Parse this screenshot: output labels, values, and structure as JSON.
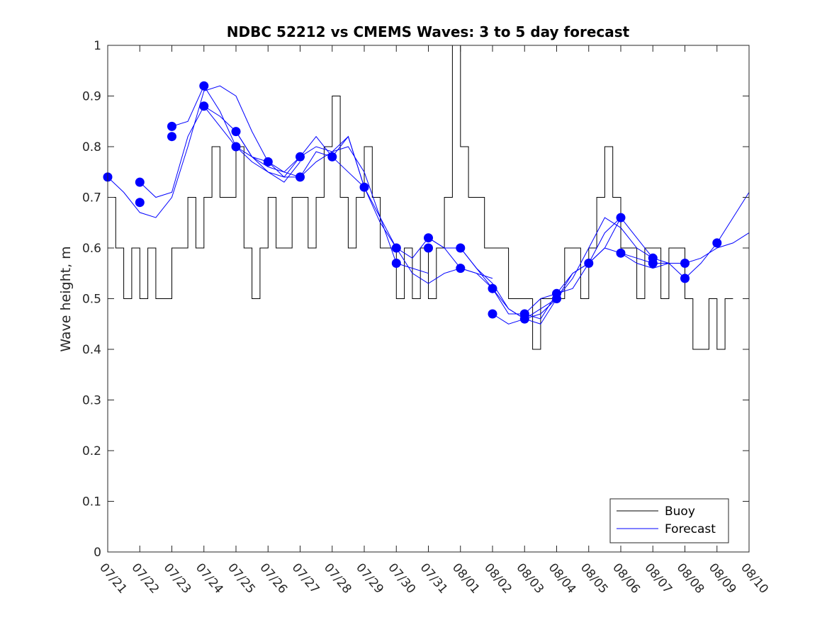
{
  "chart_data": {
    "type": "line",
    "title": "NDBC 52212 vs CMEMS Waves: 3 to 5 day forecast",
    "xlabel": "",
    "ylabel": "Wave height, m",
    "ylim": [
      0,
      1
    ],
    "yticks": [
      0,
      0.1,
      0.2,
      0.3,
      0.4,
      0.5,
      0.6,
      0.7,
      0.8,
      0.9,
      1
    ],
    "ytick_labels": [
      "0",
      "0.1",
      "0.2",
      "0.3",
      "0.4",
      "0.5",
      "0.6",
      "0.7",
      "0.8",
      "0.9",
      "1"
    ],
    "xlim": [
      "07/21",
      "08/10"
    ],
    "x_tick_labels": [
      "07/21",
      "07/22",
      "07/23",
      "07/24",
      "07/25",
      "07/26",
      "07/27",
      "07/28",
      "07/29",
      "07/30",
      "07/31",
      "08/01",
      "08/02",
      "08/03",
      "08/04",
      "08/05",
      "08/06",
      "08/07",
      "08/08",
      "08/09",
      "08/10"
    ],
    "grid": false,
    "legend_position": "bottom-right",
    "colors": {
      "buoy": "#000000",
      "forecast": "#0000ff",
      "marker": "#0000ff"
    },
    "legend": [
      {
        "name": "Buoy",
        "color": "#000000"
      },
      {
        "name": "Forecast",
        "color": "#0000ff"
      }
    ],
    "buoy": {
      "name": "Buoy",
      "x": [
        "07/21 00:00",
        "07/21 06:00",
        "07/21 12:00",
        "07/21 18:00",
        "07/22 00:00",
        "07/22 06:00",
        "07/22 12:00",
        "07/22 18:00",
        "07/23 00:00",
        "07/23 06:00",
        "07/23 12:00",
        "07/23 18:00",
        "07/24 00:00",
        "07/24 06:00",
        "07/24 12:00",
        "07/24 18:00",
        "07/25 00:00",
        "07/25 06:00",
        "07/25 12:00",
        "07/25 18:00",
        "07/26 00:00",
        "07/26 06:00",
        "07/26 12:00",
        "07/26 18:00",
        "07/27 00:00",
        "07/27 06:00",
        "07/27 12:00",
        "07/27 18:00",
        "07/28 00:00",
        "07/28 06:00",
        "07/28 12:00",
        "07/28 18:00",
        "07/29 00:00",
        "07/29 06:00",
        "07/29 12:00",
        "07/29 18:00",
        "07/30 00:00",
        "07/30 06:00",
        "07/30 12:00",
        "07/30 18:00",
        "07/31 00:00",
        "07/31 06:00",
        "07/31 12:00",
        "07/31 18:00",
        "08/01 00:00",
        "08/01 06:00",
        "08/01 12:00",
        "08/01 18:00",
        "08/02 00:00",
        "08/02 06:00",
        "08/02 12:00",
        "08/02 18:00",
        "08/03 00:00",
        "08/03 06:00",
        "08/03 12:00",
        "08/03 18:00",
        "08/04 00:00",
        "08/04 06:00",
        "08/04 12:00",
        "08/04 18:00",
        "08/05 00:00",
        "08/05 06:00",
        "08/05 12:00",
        "08/05 18:00",
        "08/06 00:00",
        "08/06 06:00",
        "08/06 12:00",
        "08/06 18:00",
        "08/07 00:00",
        "08/07 06:00",
        "08/07 12:00",
        "08/07 18:00",
        "08/08 00:00",
        "08/08 06:00",
        "08/08 12:00",
        "08/08 18:00",
        "08/09 00:00",
        "08/09 06:00",
        "08/09 12:00"
      ],
      "y": [
        0.7,
        0.6,
        0.5,
        0.6,
        0.5,
        0.6,
        0.5,
        0.5,
        0.6,
        0.6,
        0.7,
        0.6,
        0.7,
        0.8,
        0.7,
        0.7,
        0.8,
        0.6,
        0.5,
        0.6,
        0.7,
        0.6,
        0.6,
        0.7,
        0.7,
        0.6,
        0.7,
        0.8,
        0.9,
        0.7,
        0.6,
        0.7,
        0.8,
        0.7,
        0.6,
        0.6,
        0.5,
        0.6,
        0.5,
        0.6,
        0.5,
        0.6,
        0.7,
        1.0,
        0.8,
        0.7,
        0.7,
        0.6,
        0.6,
        0.6,
        0.5,
        0.5,
        0.5,
        0.4,
        0.5,
        0.5,
        0.5,
        0.6,
        0.6,
        0.5,
        0.6,
        0.7,
        0.8,
        0.7,
        0.6,
        0.6,
        0.5,
        0.6,
        0.6,
        0.5,
        0.6,
        0.6,
        0.5,
        0.4,
        0.4,
        0.5,
        0.4,
        0.5,
        0.5
      ]
    },
    "forecast_series": [
      {
        "x": [
          "07/21 00:00",
          "07/21 12:00",
          "07/22 00:00",
          "07/22 12:00",
          "07/23 00:00",
          "07/23 12:00",
          "07/24 00:00",
          "07/24 12:00",
          "07/25 00:00",
          "07/25 12:00",
          "07/26 00:00"
        ],
        "y": [
          0.74,
          0.71,
          0.67,
          0.66,
          0.7,
          0.8,
          0.91,
          0.92,
          0.9,
          0.83,
          0.77
        ]
      },
      {
        "x": [
          "07/22 00:00",
          "07/22 12:00",
          "07/23 00:00",
          "07/23 12:00",
          "07/24 00:00",
          "07/24 12:00",
          "07/25 00:00",
          "07/25 12:00",
          "07/26 00:00",
          "07/26 12:00",
          "07/27 00:00"
        ],
        "y": [
          0.73,
          0.7,
          0.71,
          0.82,
          0.88,
          0.86,
          0.83,
          0.78,
          0.75,
          0.73,
          0.77
        ]
      },
      {
        "x": [
          "07/23 00:00",
          "07/23 12:00",
          "07/24 00:00",
          "07/24 12:00",
          "07/25 00:00",
          "07/25 12:00",
          "07/26 00:00",
          "07/26 12:00",
          "07/27 00:00",
          "07/27 12:00",
          "07/28 00:00"
        ],
        "y": [
          0.84,
          0.85,
          0.92,
          0.87,
          0.8,
          0.77,
          0.75,
          0.74,
          0.78,
          0.82,
          0.78
        ]
      },
      {
        "x": [
          "07/24 00:00",
          "07/24 12:00",
          "07/25 00:00",
          "07/25 12:00",
          "07/26 00:00",
          "07/26 12:00",
          "07/27 00:00",
          "07/27 12:00",
          "07/28 00:00",
          "07/28 12:00",
          "07/29 00:00"
        ],
        "y": [
          0.88,
          0.84,
          0.8,
          0.78,
          0.76,
          0.75,
          0.78,
          0.8,
          0.79,
          0.82,
          0.72
        ]
      },
      {
        "x": [
          "07/25 00:00",
          "07/25 12:00",
          "07/26 00:00",
          "07/26 12:00",
          "07/27 00:00",
          "07/27 12:00",
          "07/28 00:00",
          "07/28 12:00",
          "07/29 00:00",
          "07/29 12:00",
          "07/30 00:00"
        ],
        "y": [
          0.83,
          0.78,
          0.77,
          0.74,
          0.74,
          0.77,
          0.79,
          0.8,
          0.75,
          0.66,
          0.6
        ]
      },
      {
        "x": [
          "07/26 00:00",
          "07/26 12:00",
          "07/27 00:00",
          "07/27 12:00",
          "07/28 00:00",
          "07/28 12:00",
          "07/29 00:00",
          "07/29 12:00",
          "07/30 00:00",
          "07/30 12:00",
          "07/31 00:00"
        ],
        "y": [
          0.77,
          0.75,
          0.74,
          0.79,
          0.78,
          0.82,
          0.72,
          0.66,
          0.57,
          0.56,
          0.55
        ]
      },
      {
        "x": [
          "07/28 00:00",
          "07/28 12:00",
          "07/29 00:00",
          "07/29 12:00",
          "07/30 00:00",
          "07/30 12:00",
          "07/31 00:00",
          "07/31 12:00",
          "08/01 00:00",
          "08/01 12:00",
          "08/02 00:00"
        ],
        "y": [
          0.78,
          0.75,
          0.72,
          0.65,
          0.6,
          0.55,
          0.53,
          0.55,
          0.56,
          0.55,
          0.54
        ]
      },
      {
        "x": [
          "07/30 00:00",
          "07/30 12:00",
          "07/31 00:00",
          "07/31 12:00",
          "08/01 00:00",
          "08/01 12:00",
          "08/02 00:00",
          "08/02 12:00",
          "08/03 00:00",
          "08/03 12:00",
          "08/04 00:00"
        ],
        "y": [
          0.6,
          0.58,
          0.62,
          0.6,
          0.56,
          0.55,
          0.52,
          0.48,
          0.46,
          0.45,
          0.5
        ]
      },
      {
        "x": [
          "07/31 00:00",
          "07/31 12:00",
          "08/01 00:00",
          "08/01 12:00",
          "08/02 00:00",
          "08/02 12:00",
          "08/03 00:00",
          "08/03 12:00",
          "08/04 00:00",
          "08/04 12:00",
          "08/05 00:00"
        ],
        "y": [
          0.62,
          0.6,
          0.6,
          0.56,
          0.52,
          0.47,
          0.47,
          0.46,
          0.51,
          0.52,
          0.57
        ]
      },
      {
        "x": [
          "08/01 00:00",
          "08/01 12:00",
          "08/02 00:00",
          "08/02 12:00",
          "08/03 00:00",
          "08/03 12:00",
          "08/04 00:00",
          "08/04 12:00",
          "08/05 00:00",
          "08/05 12:00",
          "08/06 00:00"
        ],
        "y": [
          0.6,
          0.56,
          0.53,
          0.48,
          0.46,
          0.47,
          0.5,
          0.55,
          0.57,
          0.63,
          0.66
        ]
      },
      {
        "x": [
          "08/02 00:00",
          "08/02 12:00",
          "08/03 00:00",
          "08/03 12:00",
          "08/04 00:00",
          "08/04 12:00",
          "08/05 00:00",
          "08/05 12:00",
          "08/06 00:00",
          "08/06 12:00",
          "08/07 00:00"
        ],
        "y": [
          0.47,
          0.45,
          0.46,
          0.48,
          0.5,
          0.54,
          0.6,
          0.66,
          0.64,
          0.6,
          0.58
        ]
      },
      {
        "x": [
          "08/03 00:00",
          "08/03 12:00",
          "08/04 00:00",
          "08/04 12:00",
          "08/05 00:00",
          "08/05 12:00",
          "08/06 00:00",
          "08/06 12:00",
          "08/07 00:00",
          "08/07 12:00",
          "08/08 00:00"
        ],
        "y": [
          0.47,
          0.5,
          0.51,
          0.55,
          0.57,
          0.6,
          0.59,
          0.57,
          0.56,
          0.57,
          0.57
        ]
      },
      {
        "x": [
          "08/05 00:00",
          "08/05 12:00",
          "08/06 00:00",
          "08/06 12:00",
          "08/07 00:00",
          "08/07 12:00",
          "08/08 00:00",
          "08/08 12:00",
          "08/09 00:00",
          "08/09 12:00",
          "08/10 00:00"
        ],
        "y": [
          0.57,
          0.6,
          0.66,
          0.62,
          0.58,
          0.57,
          0.54,
          0.57,
          0.61,
          0.66,
          0.71
        ]
      },
      {
        "x": [
          "08/06 00:00",
          "08/06 12:00",
          "08/07 00:00",
          "08/07 12:00",
          "08/08 00:00",
          "08/08 12:00",
          "08/09 00:00",
          "08/09 12:00",
          "08/10 00:00"
        ],
        "y": [
          0.59,
          0.58,
          0.57,
          0.57,
          0.57,
          0.58,
          0.6,
          0.61,
          0.63
        ]
      }
    ],
    "forecast_markers": [
      {
        "x": "07/21 00:00",
        "y": 0.74
      },
      {
        "x": "07/22 00:00",
        "y": 0.73
      },
      {
        "x": "07/22 00:00",
        "y": 0.69
      },
      {
        "x": "07/23 00:00",
        "y": 0.84
      },
      {
        "x": "07/23 00:00",
        "y": 0.82
      },
      {
        "x": "07/24 00:00",
        "y": 0.92
      },
      {
        "x": "07/24 00:00",
        "y": 0.88
      },
      {
        "x": "07/25 00:00",
        "y": 0.83
      },
      {
        "x": "07/25 00:00",
        "y": 0.8
      },
      {
        "x": "07/26 00:00",
        "y": 0.77
      },
      {
        "x": "07/27 00:00",
        "y": 0.78
      },
      {
        "x": "07/27 00:00",
        "y": 0.74
      },
      {
        "x": "07/28 00:00",
        "y": 0.78
      },
      {
        "x": "07/29 00:00",
        "y": 0.72
      },
      {
        "x": "07/30 00:00",
        "y": 0.6
      },
      {
        "x": "07/30 00:00",
        "y": 0.57
      },
      {
        "x": "07/31 00:00",
        "y": 0.62
      },
      {
        "x": "07/31 00:00",
        "y": 0.6
      },
      {
        "x": "08/01 00:00",
        "y": 0.6
      },
      {
        "x": "08/01 00:00",
        "y": 0.56
      },
      {
        "x": "08/02 00:00",
        "y": 0.52
      },
      {
        "x": "08/02 00:00",
        "y": 0.47
      },
      {
        "x": "08/03 00:00",
        "y": 0.47
      },
      {
        "x": "08/03 00:00",
        "y": 0.46
      },
      {
        "x": "08/04 00:00",
        "y": 0.51
      },
      {
        "x": "08/04 00:00",
        "y": 0.5
      },
      {
        "x": "08/05 00:00",
        "y": 0.57
      },
      {
        "x": "08/06 00:00",
        "y": 0.66
      },
      {
        "x": "08/06 00:00",
        "y": 0.59
      },
      {
        "x": "08/07 00:00",
        "y": 0.58
      },
      {
        "x": "08/07 00:00",
        "y": 0.57
      },
      {
        "x": "08/08 00:00",
        "y": 0.57
      },
      {
        "x": "08/08 00:00",
        "y": 0.54
      },
      {
        "x": "08/09 00:00",
        "y": 0.61
      }
    ]
  }
}
